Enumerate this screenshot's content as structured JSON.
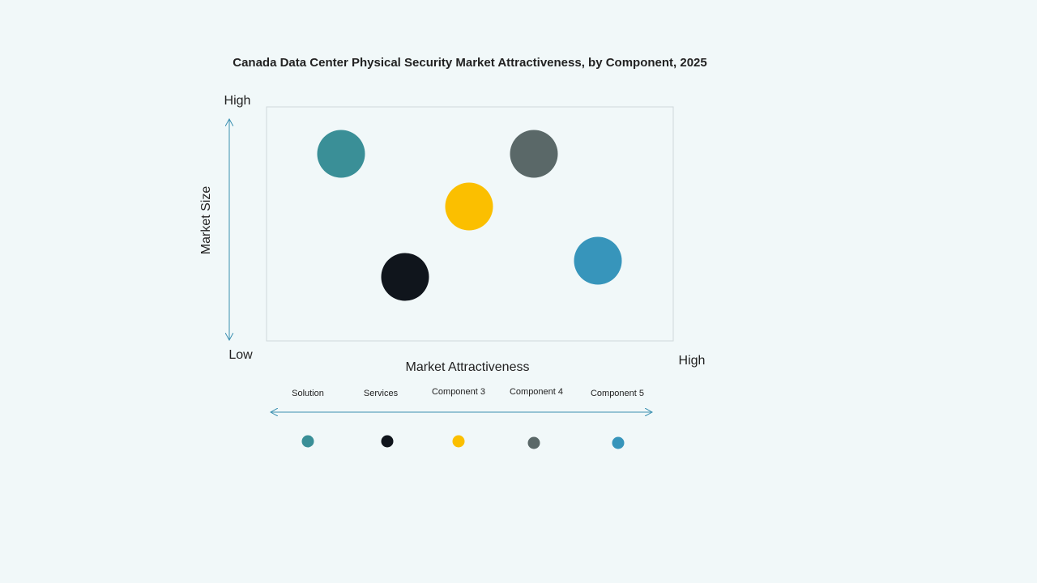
{
  "title": "Canada Data Center Physical Security Market Attractiveness,  by Component, 2025",
  "y_axis": {
    "label": "Market Size",
    "high": "High",
    "low": "Low"
  },
  "x_axis": {
    "label": "Market Attractiveness",
    "high": "High"
  },
  "components": [
    {
      "name": "Solution",
      "color": "#3a8f97"
    },
    {
      "name": "Services",
      "color": "#10151c"
    },
    {
      "name": "Component 3",
      "color": "#fbbf00"
    },
    {
      "name": "Component 4",
      "color": "#5a6868"
    },
    {
      "name": "Component 5",
      "color": "#3795bb"
    }
  ]
}
